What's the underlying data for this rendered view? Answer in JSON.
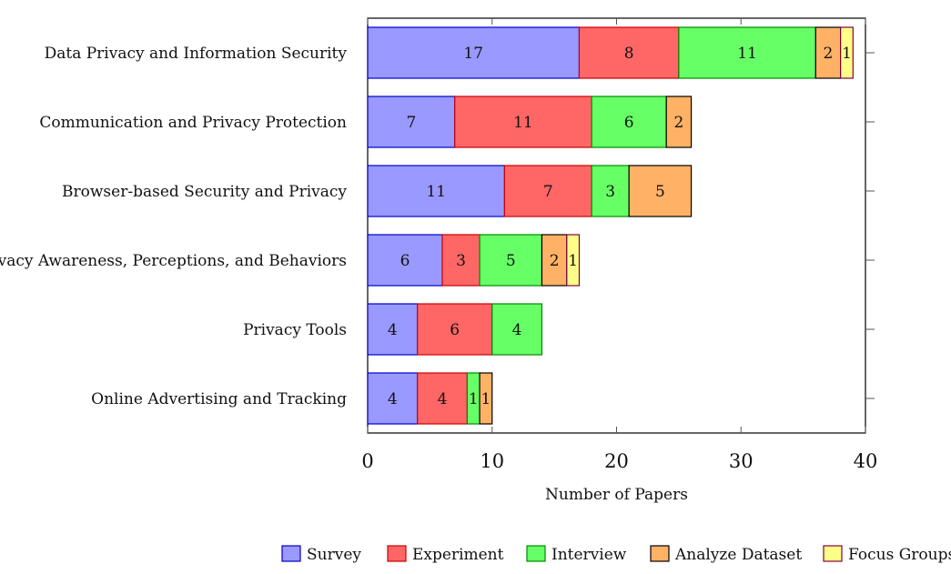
{
  "chart_data": {
    "type": "bar",
    "orientation": "horizontal",
    "stacked": true,
    "categories": [
      "Data Privacy and Information Security",
      "Communication and Privacy Protection",
      "Browser-based Security and Privacy",
      "Privacy Awareness, Perceptions, and Behaviors",
      "Privacy Tools",
      "Online Advertising and Tracking"
    ],
    "series": [
      {
        "name": "Survey",
        "values": [
          17,
          7,
          11,
          6,
          4,
          4
        ],
        "color": "#9999ff",
        "stroke": "#0000cc"
      },
      {
        "name": "Experiment",
        "values": [
          8,
          11,
          7,
          3,
          6,
          4
        ],
        "color": "#ff6666",
        "stroke": "#cc0000"
      },
      {
        "name": "Interview",
        "values": [
          11,
          6,
          3,
          5,
          4,
          1
        ],
        "color": "#66ff66",
        "stroke": "#008800"
      },
      {
        "name": "Analyze Dataset",
        "values": [
          2,
          2,
          5,
          2,
          0,
          1
        ],
        "color": "#ffb266",
        "stroke": "#000000"
      },
      {
        "name": "Focus Groups",
        "values": [
          1,
          0,
          0,
          1,
          0,
          0
        ],
        "color": "#ffff88",
        "stroke": "#800040"
      }
    ],
    "xlabel": "Number of Papers",
    "ylabel": "",
    "title": "",
    "xlim": [
      0,
      40
    ],
    "xticks": [
      0,
      10,
      20,
      30,
      40
    ],
    "grid": false,
    "legend_position": "bottom"
  }
}
